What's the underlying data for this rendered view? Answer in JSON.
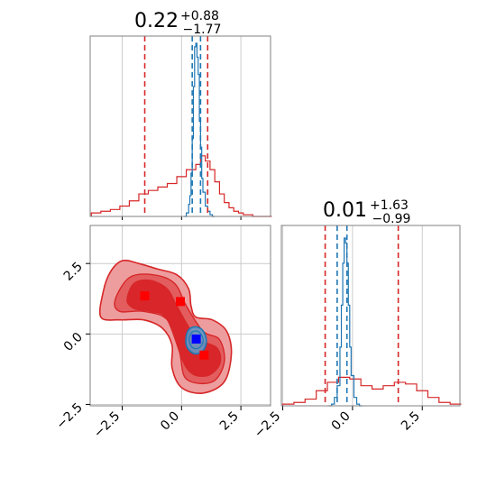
{
  "chart_data": [
    {
      "type": "line",
      "panel": "marginal-param-1",
      "title": {
        "value": "0.22",
        "upper": "+0.88",
        "lower": "−1.77"
      },
      "xlim": [
        -3.85,
        3.75
      ],
      "series": [
        {
          "name": "",
          "color": "#d62728",
          "x": [
            -3.8,
            -3.4,
            -3.0,
            -2.6,
            -2.2,
            -1.8,
            -1.4,
            -1.0,
            -0.6,
            -0.2,
            0.2,
            0.6,
            0.8,
            1.0,
            1.2,
            1.4,
            1.6,
            1.8,
            2.0,
            2.2,
            2.4,
            2.6,
            2.8,
            3.0,
            3.2,
            3.4,
            3.6
          ],
          "values": [
            0.02,
            0.03,
            0.04,
            0.06,
            0.09,
            0.13,
            0.15,
            0.17,
            0.19,
            0.23,
            0.27,
            0.3,
            0.35,
            0.32,
            0.27,
            0.2,
            0.13,
            0.08,
            0.05,
            0.03,
            0.02,
            0.01,
            0.01,
            0.0,
            0.0,
            0.0,
            0.0
          ]
        },
        {
          "name": "",
          "color": "#1f77b4",
          "x": [
            0.1,
            0.2,
            0.3,
            0.35,
            0.4,
            0.45,
            0.5,
            0.55,
            0.6,
            0.65,
            0.7,
            0.75,
            0.8,
            0.85,
            0.9,
            1.0,
            1.1,
            1.2,
            1.3
          ],
          "values": [
            0.0,
            0.02,
            0.07,
            0.12,
            0.25,
            0.45,
            0.75,
            0.98,
            1.0,
            0.92,
            0.82,
            0.55,
            0.4,
            0.22,
            0.14,
            0.06,
            0.03,
            0.01,
            0.0
          ]
        }
      ],
      "quantiles": [
        {
          "color": "#d62728",
          "x": [
            -1.55,
            1.1
          ]
        },
        {
          "color": "#1f77b4",
          "x": [
            0.45,
            0.8
          ]
        }
      ],
      "grid": true
    },
    {
      "type": "line",
      "panel": "marginal-param-2",
      "title": {
        "value": "0.01",
        "upper": "+1.63",
        "lower": "−0.99"
      },
      "xlim": [
        -2.55,
        3.85
      ],
      "xticks": [
        -2.5,
        0.0,
        2.5
      ],
      "xticklabels": [
        "−2.5",
        "0.0",
        "2.5"
      ],
      "series": [
        {
          "name": "",
          "color": "#d62728",
          "x": [
            -2.5,
            -2.1,
            -1.7,
            -1.3,
            -0.9,
            -0.5,
            -0.1,
            0.3,
            0.7,
            1.1,
            1.5,
            1.9,
            2.3,
            2.7,
            3.1,
            3.5
          ],
          "values": [
            0.01,
            0.02,
            0.04,
            0.09,
            0.14,
            0.17,
            0.16,
            0.12,
            0.1,
            0.12,
            0.14,
            0.13,
            0.09,
            0.05,
            0.02,
            0.01
          ]
        },
        {
          "name": "",
          "color": "#1f77b4",
          "x": [
            -0.85,
            -0.75,
            -0.65,
            -0.55,
            -0.45,
            -0.4,
            -0.35,
            -0.3,
            -0.25,
            -0.2,
            -0.15,
            -0.1,
            -0.05,
            0.05,
            0.15,
            0.25
          ],
          "values": [
            0.0,
            0.01,
            0.05,
            0.12,
            0.35,
            0.6,
            0.85,
            1.0,
            0.97,
            0.85,
            0.6,
            0.35,
            0.18,
            0.05,
            0.01,
            0.0
          ]
        }
      ],
      "quantiles": [
        {
          "color": "#d62728",
          "x": [
            -0.98,
            1.64
          ]
        },
        {
          "color": "#1f77b4",
          "x": [
            -0.55,
            -0.2
          ]
        }
      ],
      "grid": true
    },
    {
      "type": "scatter",
      "panel": "joint-2d",
      "xlim": [
        -3.85,
        3.75
      ],
      "ylim": [
        -2.55,
        3.85
      ],
      "xticks": [
        -2.5,
        0.0,
        2.5
      ],
      "xticklabels": [
        "−2.5",
        "0.0",
        "2.5"
      ],
      "yticks": [
        -2.5,
        0.0,
        2.5
      ],
      "yticklabels": [
        "−2.5",
        "0.0",
        "2.5"
      ],
      "red_contours": {
        "outer": [
          [
            -3.3,
            1.5
          ],
          [
            -3.0,
            2.2
          ],
          [
            -2.5,
            2.6
          ],
          [
            -1.8,
            2.5
          ],
          [
            -1.0,
            2.3
          ],
          [
            -0.2,
            2.1
          ],
          [
            0.3,
            1.6
          ],
          [
            0.4,
            1.0
          ],
          [
            0.6,
            0.6
          ],
          [
            1.3,
            0.5
          ],
          [
            1.9,
            0.1
          ],
          [
            2.1,
            -0.7
          ],
          [
            1.8,
            -1.7
          ],
          [
            0.9,
            -2.1
          ],
          [
            0.0,
            -1.9
          ],
          [
            -0.4,
            -1.2
          ],
          [
            -0.4,
            -0.4
          ],
          [
            -0.8,
            0.2
          ],
          [
            -1.6,
            0.5
          ],
          [
            -2.6,
            0.5
          ],
          [
            -3.4,
            0.6
          ]
        ],
        "middle": [
          [
            -2.8,
            1.2
          ],
          [
            -2.2,
            2.0
          ],
          [
            -1.2,
            2.1
          ],
          [
            -0.3,
            1.8
          ],
          [
            0.2,
            1.0
          ],
          [
            0.9,
            0.1
          ],
          [
            1.6,
            -0.2
          ],
          [
            1.8,
            -1.0
          ],
          [
            1.3,
            -1.7
          ],
          [
            0.2,
            -1.6
          ],
          [
            -0.1,
            -0.6
          ],
          [
            -0.6,
            0.5
          ],
          [
            -1.6,
            0.8
          ],
          [
            -2.6,
            0.8
          ]
        ],
        "inner": [
          [
            -2.3,
            1.2
          ],
          [
            -2.0,
            1.8
          ],
          [
            -1.3,
            1.9
          ],
          [
            -0.6,
            1.6
          ],
          [
            -0.2,
            1.0
          ],
          [
            0.6,
            -0.1
          ],
          [
            1.5,
            -0.5
          ],
          [
            1.6,
            -1.1
          ],
          [
            1.0,
            -1.5
          ],
          [
            0.2,
            -1.2
          ],
          [
            -0.6,
            0.5
          ],
          [
            -1.3,
            0.8
          ],
          [
            -2.0,
            0.9
          ]
        ]
      },
      "blue_contours": {
        "outer": [
          [
            0.18,
            -0.2
          ],
          [
            0.3,
            0.15
          ],
          [
            0.6,
            0.25
          ],
          [
            0.9,
            0.12
          ],
          [
            1.05,
            -0.25
          ],
          [
            0.9,
            -0.6
          ],
          [
            0.55,
            -0.7
          ],
          [
            0.25,
            -0.5
          ]
        ],
        "inner": [
          [
            0.32,
            -0.2
          ],
          [
            0.42,
            0.05
          ],
          [
            0.65,
            0.1
          ],
          [
            0.85,
            -0.05
          ],
          [
            0.9,
            -0.3
          ],
          [
            0.72,
            -0.5
          ],
          [
            0.45,
            -0.48
          ]
        ]
      },
      "red_markers": [
        [
          -1.55,
          1.35
        ],
        [
          -0.05,
          1.15
        ],
        [
          0.95,
          -0.75
        ]
      ],
      "blue_marker": [
        0.62,
        -0.18
      ],
      "colors": {
        "red_line": "#d62728",
        "red_fill_light": "#ee9d9e",
        "red_fill_dark": "#d8262a",
        "blue": "#1f77b4",
        "marker_red": "#ff0000",
        "marker_blue": "#0000ff"
      },
      "grid": true
    }
  ]
}
